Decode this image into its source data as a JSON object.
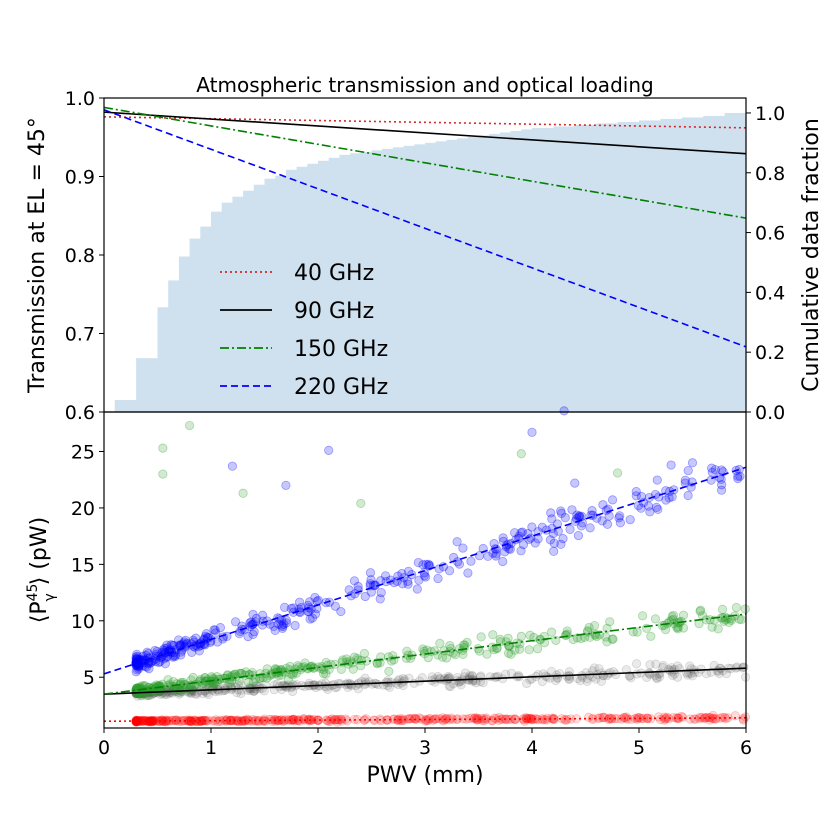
{
  "chart_data": [
    {
      "type": "line",
      "title": "Atmospheric transmission and optical loading",
      "xlabel": "",
      "ylabel": "Transmission at EL = 45°",
      "y2label": "Cumulative data fraction",
      "xlim": [
        0,
        6
      ],
      "ylim": [
        0.6,
        1.0
      ],
      "y2lim": [
        0.0,
        1.05
      ],
      "yticks": [
        "0.6",
        "0.7",
        "0.8",
        "0.9",
        "1.0"
      ],
      "y2ticks": [
        "0.0",
        "0.2",
        "0.4",
        "0.6",
        "0.8",
        "1.0"
      ],
      "legend_position": "center-left",
      "series": [
        {
          "name": "40 GHz",
          "color": "#d62728",
          "style": "dotted",
          "x": [
            0,
            6
          ],
          "values": [
            0.976,
            0.962
          ]
        },
        {
          "name": "90 GHz",
          "color": "#000000",
          "style": "solid",
          "x": [
            0,
            6
          ],
          "values": [
            0.982,
            0.929
          ]
        },
        {
          "name": "150 GHz",
          "color": "#008000",
          "style": "dashdot",
          "x": [
            0,
            6
          ],
          "values": [
            0.988,
            0.847
          ]
        },
        {
          "name": "220 GHz",
          "color": "#0000ff",
          "style": "dashed",
          "x": [
            0,
            6
          ],
          "values": [
            0.985,
            0.683
          ]
        }
      ],
      "histogram": {
        "name": "Cumulative data fraction",
        "color": "#cfe1ee",
        "bin_edges": [
          0.1,
          0.3,
          0.5,
          0.6,
          0.7,
          0.8,
          0.9,
          1.0,
          1.1,
          1.2,
          1.3,
          1.4,
          1.5,
          1.6,
          1.7,
          1.8,
          1.9,
          2.0,
          2.1,
          2.2,
          2.3,
          2.4,
          2.5,
          2.6,
          2.7,
          2.8,
          2.9,
          3.0,
          3.1,
          3.2,
          3.3,
          3.4,
          3.5,
          3.6,
          3.7,
          3.8,
          3.9,
          4.0,
          4.2,
          4.4,
          4.6,
          4.8,
          5.0,
          5.2,
          5.4,
          5.6,
          5.8,
          6.0
        ],
        "cumulative_fraction": [
          0.04,
          0.18,
          0.35,
          0.44,
          0.52,
          0.58,
          0.62,
          0.67,
          0.7,
          0.72,
          0.74,
          0.76,
          0.78,
          0.79,
          0.81,
          0.82,
          0.83,
          0.84,
          0.85,
          0.86,
          0.865,
          0.87,
          0.875,
          0.88,
          0.885,
          0.89,
          0.895,
          0.9,
          0.905,
          0.91,
          0.915,
          0.92,
          0.925,
          0.93,
          0.935,
          0.94,
          0.945,
          0.95,
          0.955,
          0.96,
          0.965,
          0.97,
          0.975,
          0.98,
          0.985,
          0.99,
          1.0
        ]
      }
    },
    {
      "type": "scatter",
      "title": "",
      "xlabel": "PWV (mm)",
      "ylabel": "⟨P45γ⟩ (pW)",
      "ylabel_parts": {
        "open": "⟨P",
        "sup": "45",
        "sub": "γ",
        "close": "⟩ (pW)"
      },
      "xlim": [
        0,
        6
      ],
      "ylim": [
        0.5,
        28.5
      ],
      "xticks": [
        "0",
        "1",
        "2",
        "3",
        "4",
        "5",
        "6"
      ],
      "yticks": [
        "5",
        "10",
        "15",
        "20",
        "25"
      ],
      "series": [
        {
          "name": "40 GHz",
          "color": "#ff0000",
          "points_color": "#ff0000",
          "fit_style": "dotted",
          "fit_x": [
            0,
            6
          ],
          "fit_y": [
            1.1,
            1.4
          ],
          "cluster": {
            "x_range": [
              0.3,
              6.0
            ],
            "y_at_0": 1.1,
            "slope": 0.05,
            "spread": 0.25
          }
        },
        {
          "name": "90 GHz",
          "color": "#000000",
          "points_color": "#555555",
          "fit_style": "solid",
          "fit_x": [
            0,
            6
          ],
          "fit_y": [
            3.5,
            5.8
          ],
          "cluster": {
            "x_range": [
              0.3,
              6.0
            ],
            "y_at_0": 3.5,
            "slope": 0.38,
            "spread": 0.8
          }
        },
        {
          "name": "150 GHz",
          "color": "#008000",
          "points_color": "#2ca02c",
          "fit_style": "dashdot",
          "fit_x": [
            0,
            6
          ],
          "fit_y": [
            3.5,
            10.6
          ],
          "cluster": {
            "x_range": [
              0.3,
              6.0
            ],
            "y_at_0": 3.5,
            "slope": 1.18,
            "spread": 1.3
          }
        },
        {
          "name": "220 GHz",
          "color": "#0000ff",
          "points_color": "#0000ff",
          "fit_style": "dashed",
          "fit_x": [
            0,
            6
          ],
          "fit_y": [
            5.3,
            23.6
          ],
          "cluster": {
            "x_range": [
              0.3,
              6.0
            ],
            "y_at_0": 5.3,
            "slope": 3.05,
            "spread": 2.2
          }
        }
      ],
      "outliers": [
        {
          "series": "150 GHz",
          "x": 0.8,
          "y": 27.3
        },
        {
          "series": "150 GHz",
          "x": 0.55,
          "y": 25.3
        },
        {
          "series": "150 GHz",
          "x": 0.55,
          "y": 23.0
        },
        {
          "series": "150 GHz",
          "x": 1.3,
          "y": 21.3
        },
        {
          "series": "220 GHz",
          "x": 1.2,
          "y": 23.7
        },
        {
          "series": "220 GHz",
          "x": 2.1,
          "y": 25.1
        },
        {
          "series": "220 GHz",
          "x": 1.7,
          "y": 22.0
        },
        {
          "series": "220 GHz",
          "x": 4.3,
          "y": 28.6
        },
        {
          "series": "220 GHz",
          "x": 4.0,
          "y": 26.7
        },
        {
          "series": "150 GHz",
          "x": 3.9,
          "y": 24.8
        },
        {
          "series": "220 GHz",
          "x": 4.4,
          "y": 22.2
        },
        {
          "series": "150 GHz",
          "x": 4.8,
          "y": 23.1
        },
        {
          "series": "220 GHz",
          "x": 5.3,
          "y": 23.8
        },
        {
          "series": "220 GHz",
          "x": 5.5,
          "y": 24.0
        },
        {
          "series": "150 GHz",
          "x": 2.4,
          "y": 20.4
        },
        {
          "series": "220 GHz",
          "x": 3.3,
          "y": 17.0
        }
      ]
    }
  ]
}
